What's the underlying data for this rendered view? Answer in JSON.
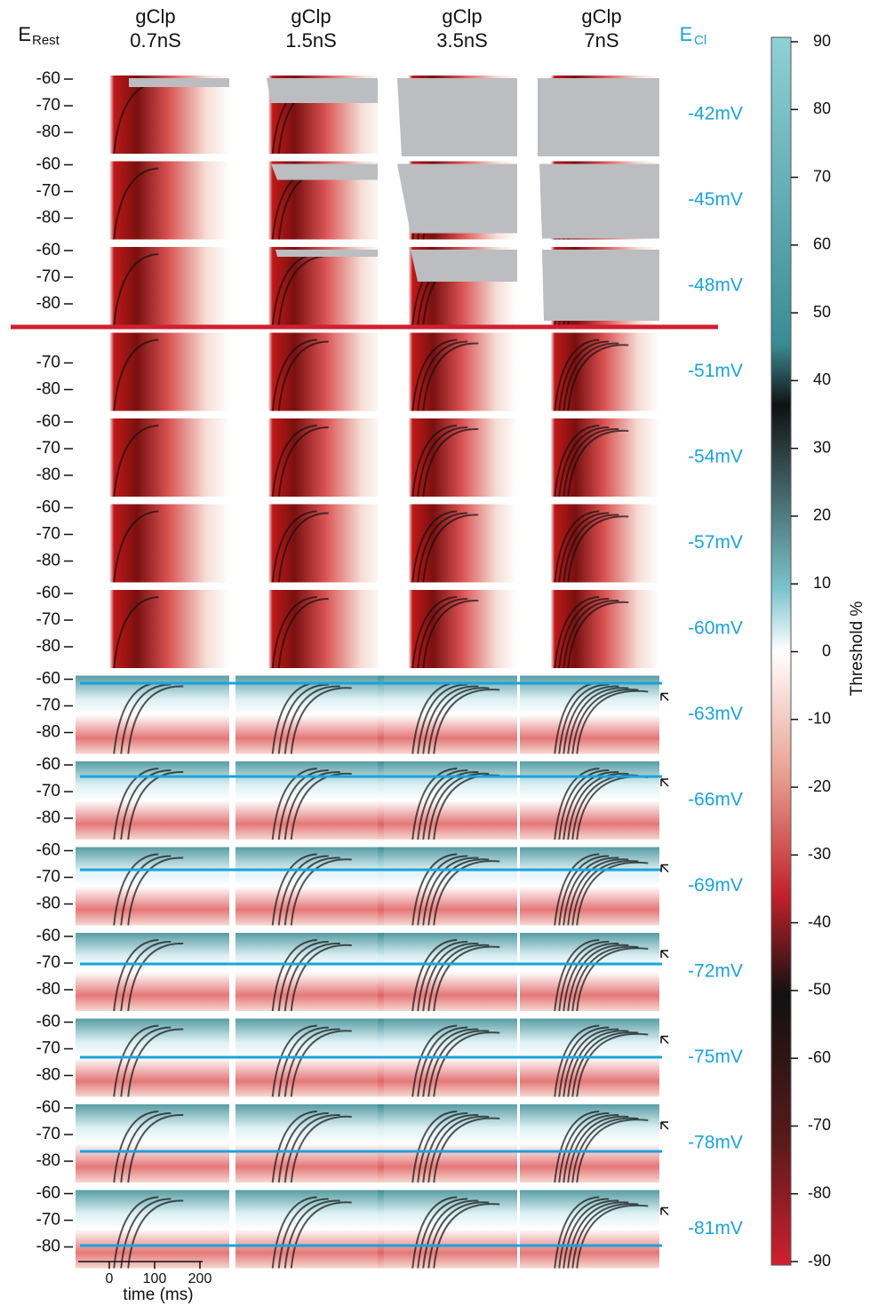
{
  "header": {
    "rest_label": {
      "main": "E",
      "sub": "Rest"
    },
    "cl_label": {
      "main": "E",
      "sub": "Cl"
    },
    "columns": [
      {
        "symbol": "gClp",
        "value": "0.7nS"
      },
      {
        "symbol": "gClp",
        "value": "1.5nS"
      },
      {
        "symbol": "gClp",
        "value": "3.5nS"
      },
      {
        "symbol": "gClp",
        "value": "7nS"
      }
    ]
  },
  "rows": [
    {
      "ecl": "-42mV",
      "yticks": [
        "-60",
        "-70",
        "-80"
      ]
    },
    {
      "ecl": "-45mV",
      "yticks": [
        "-60",
        "-70",
        "-80"
      ]
    },
    {
      "ecl": "-48mV",
      "yticks": [
        "-60",
        "-70",
        "-80"
      ]
    },
    {
      "ecl": "-51mV",
      "yticks": [
        "-70",
        "-80"
      ]
    },
    {
      "ecl": "-54mV",
      "yticks": [
        "-60",
        "-70",
        "-80"
      ]
    },
    {
      "ecl": "-57mV",
      "yticks": [
        "-60",
        "-70",
        "-80"
      ]
    },
    {
      "ecl": "-60mV",
      "yticks": [
        "-60",
        "-70",
        "-80"
      ]
    },
    {
      "ecl": "-63mV",
      "yticks": [
        "-60",
        "-70",
        "-80"
      ]
    },
    {
      "ecl": "-66mV",
      "yticks": [
        "-60",
        "-70",
        "-80"
      ]
    },
    {
      "ecl": "-69mV",
      "yticks": [
        "-60",
        "-70",
        "-80"
      ]
    },
    {
      "ecl": "-72mV",
      "yticks": [
        "-60",
        "-70",
        "-80"
      ]
    },
    {
      "ecl": "-75mV",
      "yticks": [
        "-60",
        "-70",
        "-80"
      ]
    },
    {
      "ecl": "-78mV",
      "yticks": [
        "-60",
        "-70",
        "-80"
      ]
    },
    {
      "ecl": "-81mV",
      "yticks": [
        "-60",
        "-70",
        "-80"
      ]
    }
  ],
  "x_axis": {
    "label": "time (ms)",
    "ticks": [
      "0",
      "100",
      "200"
    ]
  },
  "colorbar": {
    "label": "Threshold %",
    "ticks": [
      "90",
      "80",
      "70",
      "60",
      "50",
      "40",
      "30",
      "20",
      "10",
      "0",
      "-10",
      "-20",
      "-30",
      "-40",
      "-50",
      "-60",
      "-70",
      "-80",
      "-90"
    ]
  }
}
